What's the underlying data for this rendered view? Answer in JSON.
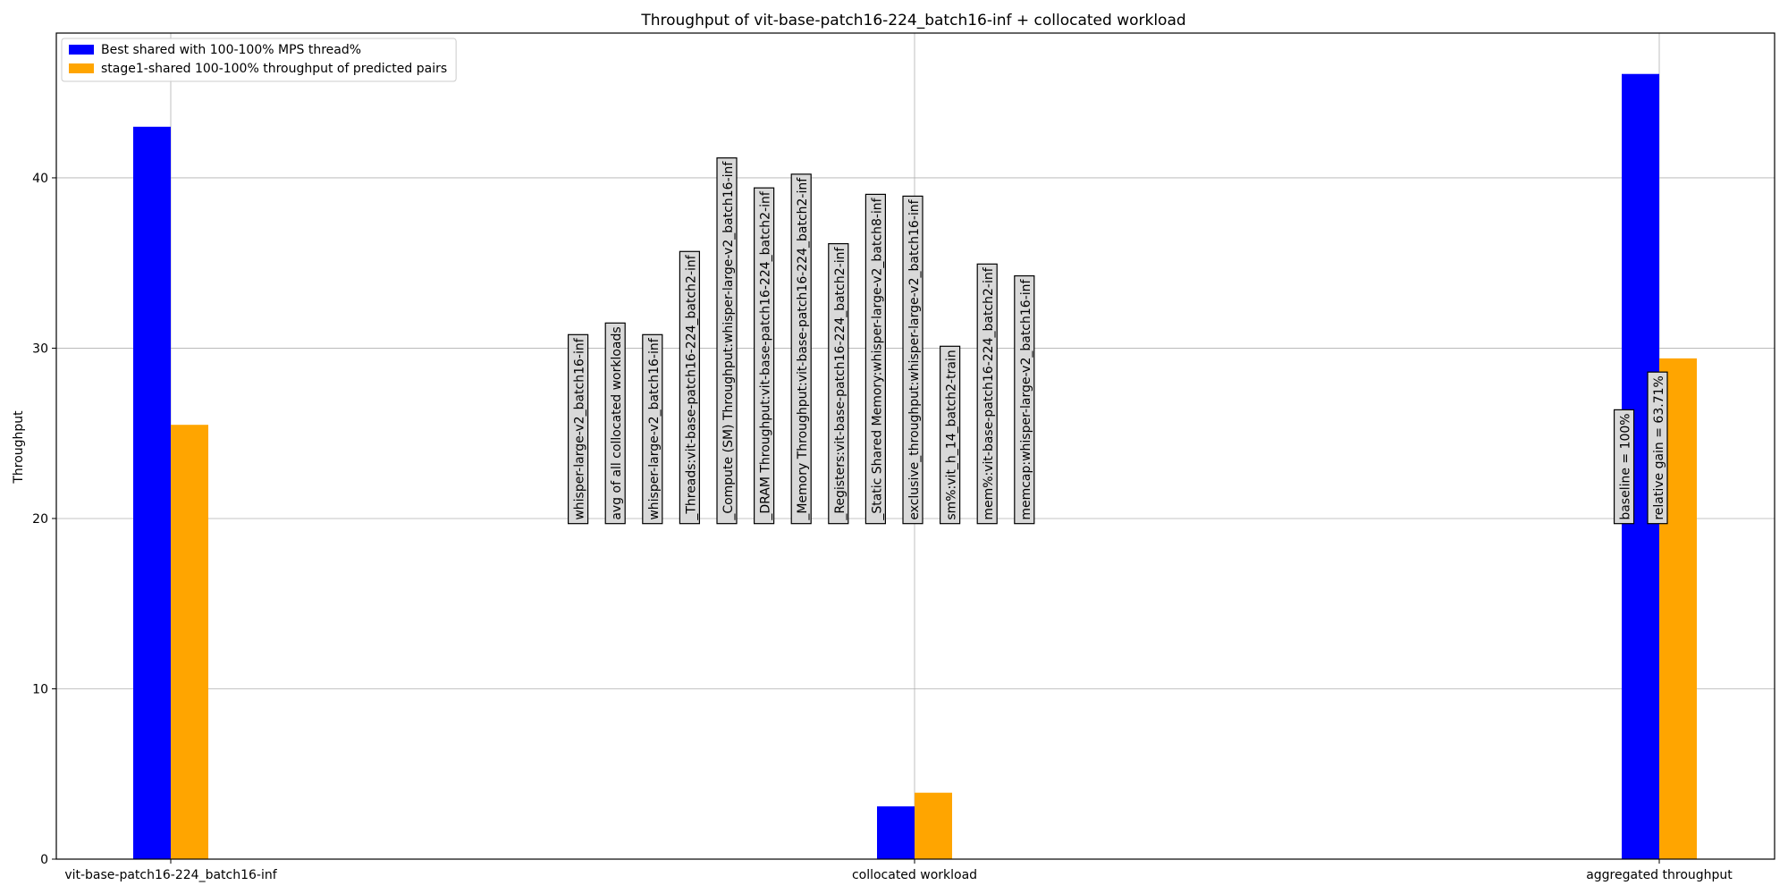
{
  "chart_data": {
    "type": "bar",
    "title": "Throughput of vit-base-patch16-224_batch16-inf + collocated workload",
    "xlabel": "",
    "ylabel": "Throughput",
    "ylim": [
      0,
      48.5
    ],
    "yticks": [
      0,
      10,
      20,
      30,
      40
    ],
    "grid": true,
    "legend_position": "top-left",
    "categories": [
      "vit-base-patch16-224_batch16-inf",
      "collocated workload",
      "aggregated throughput"
    ],
    "series": [
      {
        "name": "Best shared with 100-100% MPS thread%",
        "color": "#0000ff",
        "values": [
          43.0,
          3.1,
          46.1
        ]
      },
      {
        "name": "stage1-shared 100-100% throughput of predicted pairs",
        "color": "#ffa500",
        "values": [
          25.5,
          3.9,
          29.4
        ]
      }
    ],
    "annotations": [
      {
        "text": "whisper-large-v2_batch16-inf",
        "category": 1,
        "offset": -0.45,
        "y": 19.7
      },
      {
        "text": "avg of all collocated workloads",
        "category": 1,
        "offset": -0.4,
        "y": 19.7
      },
      {
        "text": "whisper-large-v2_batch16-inf",
        "category": 1,
        "offset": -0.35,
        "y": 19.7
      },
      {
        "text": "_Threads:vit-base-patch16-224_batch2-inf",
        "category": 1,
        "offset": -0.3,
        "y": 19.7
      },
      {
        "text": "_Compute (SM) Throughput:whisper-large-v2_batch16-inf",
        "category": 1,
        "offset": -0.25,
        "y": 19.7
      },
      {
        "text": "_DRAM Throughput:vit-base-patch16-224_batch2-inf",
        "category": 1,
        "offset": -0.2,
        "y": 19.7
      },
      {
        "text": "_Memory Throughput:vit-base-patch16-224_batch2-inf",
        "category": 1,
        "offset": -0.15,
        "y": 19.7
      },
      {
        "text": "_Registers:vit-base-patch16-224_batch2-inf",
        "category": 1,
        "offset": -0.1,
        "y": 19.7
      },
      {
        "text": "_Static Shared Memory:whisper-large-v2_batch8-inf",
        "category": 1,
        "offset": -0.05,
        "y": 19.7
      },
      {
        "text": "exclusive_throughput:whisper-large-v2_batch16-inf",
        "category": 1,
        "offset": 0.0,
        "y": 19.7
      },
      {
        "text": "sm%:vit_h_14_batch2-train",
        "category": 1,
        "offset": 0.05,
        "y": 19.7
      },
      {
        "text": "mem%:vit-base-patch16-224_batch2-inf",
        "category": 1,
        "offset": 0.1,
        "y": 19.7
      },
      {
        "text": "memcap:whisper-large-v2_batch16-inf",
        "category": 1,
        "offset": 0.15,
        "y": 19.7
      },
      {
        "text": "baseline = 100%",
        "category": 2,
        "offset": -0.045,
        "y": 19.7
      },
      {
        "text": "relative gain = 63.71%",
        "category": 2,
        "offset": 0.0,
        "y": 19.7
      }
    ]
  }
}
